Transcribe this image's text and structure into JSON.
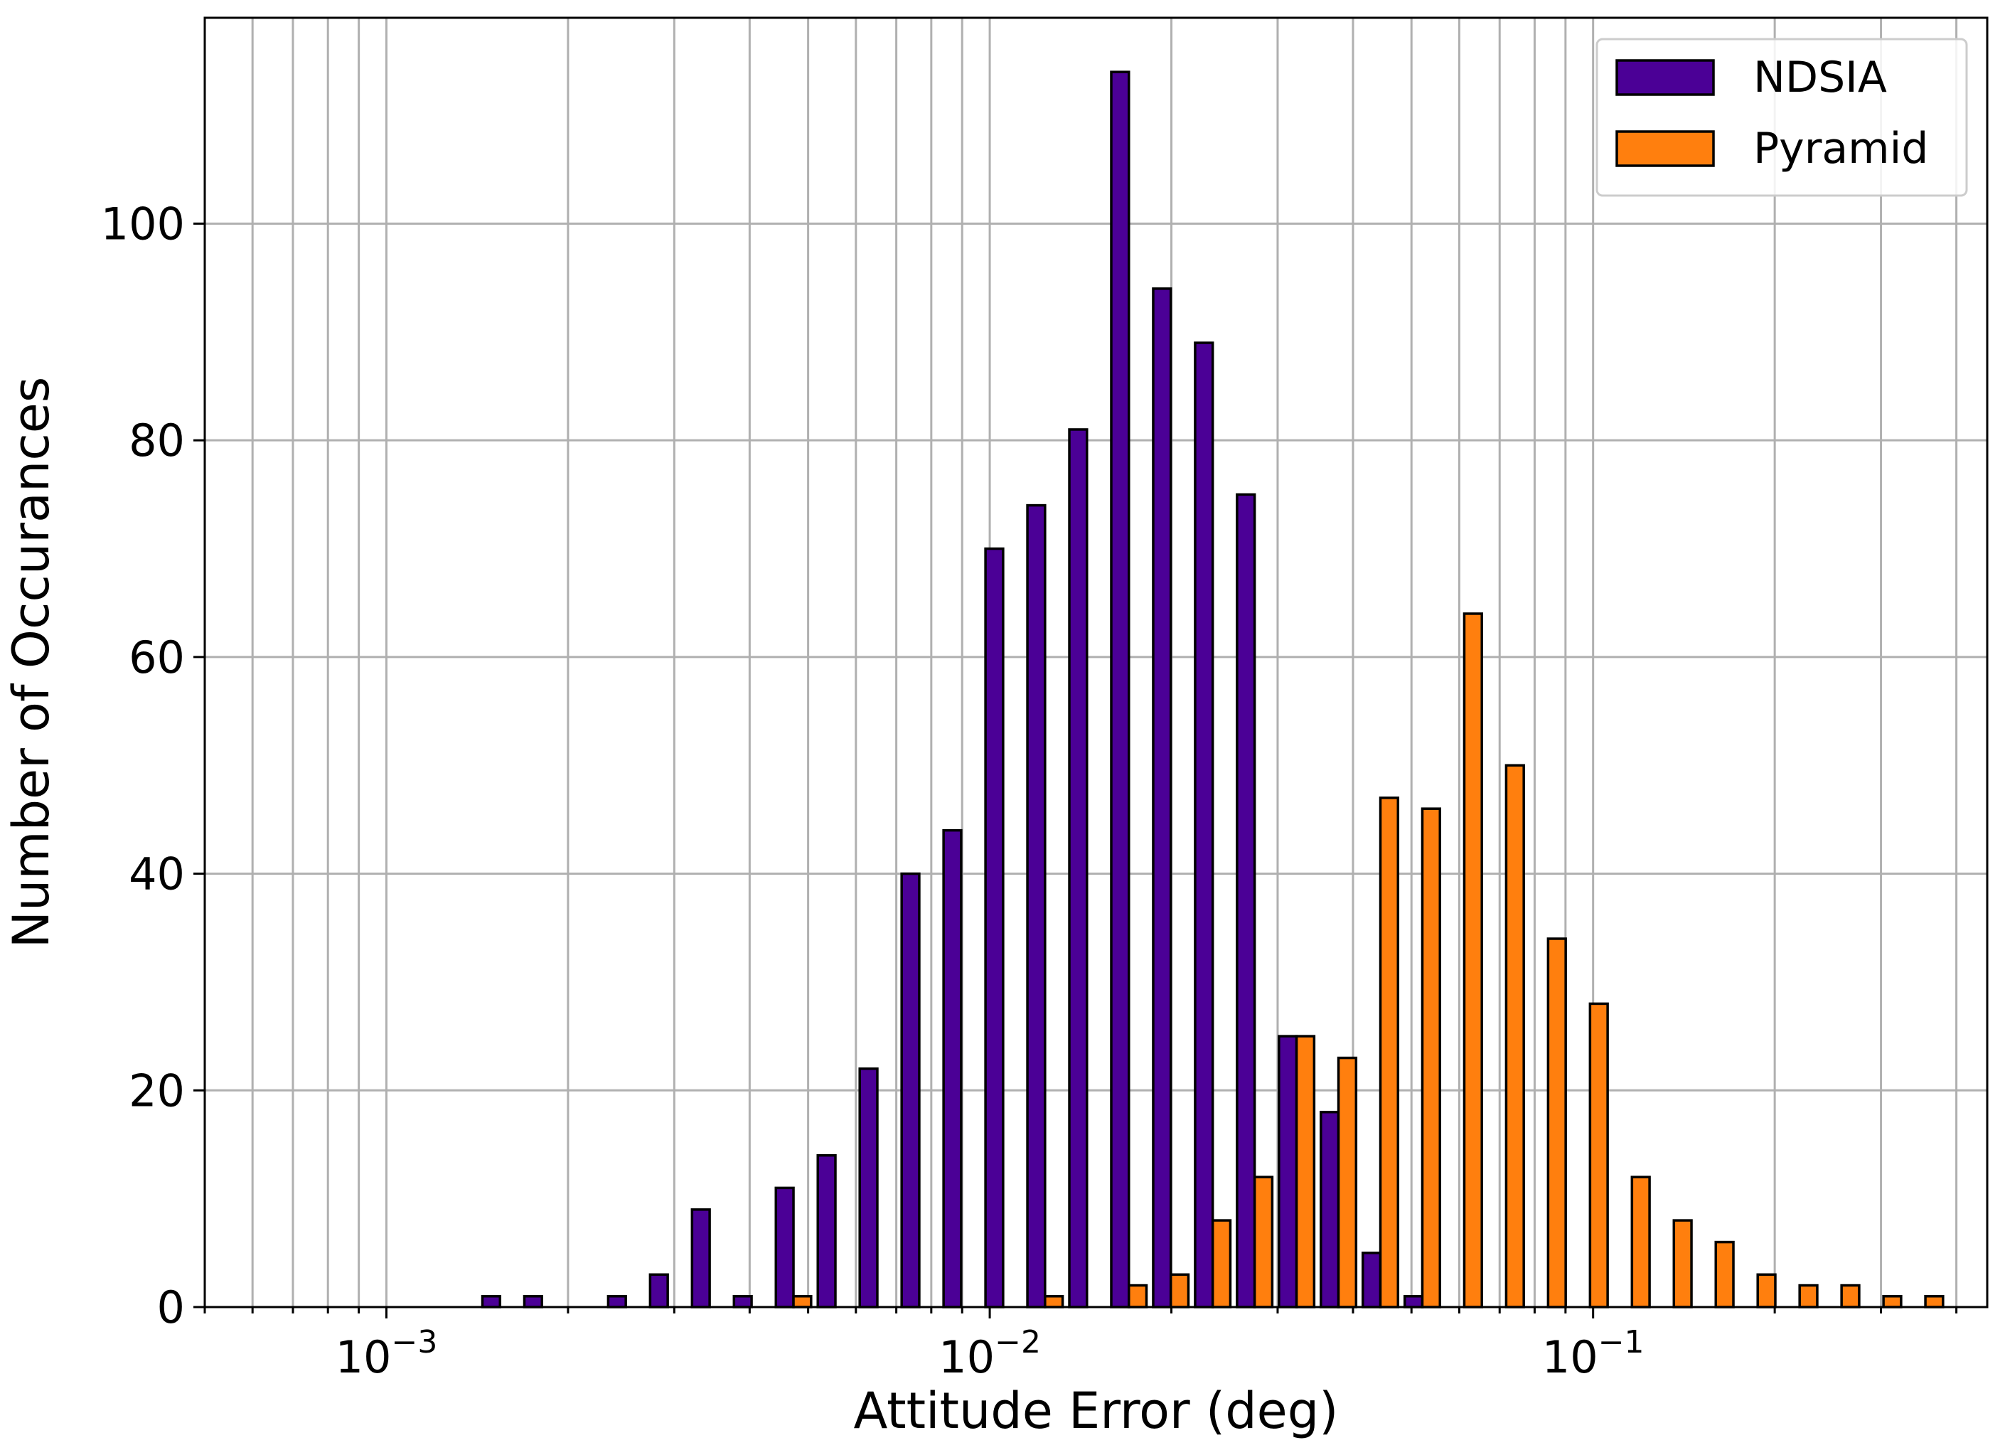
{
  "chart_data": {
    "type": "bar",
    "xlabel": "Attitude Error (deg)",
    "ylabel": "Number of Occurances",
    "x_scale": "log",
    "xlim": [
      0.0005,
      0.45
    ],
    "ylim": [
      0,
      119
    ],
    "grid": true,
    "legend_position": "top-right",
    "x_ticks": [
      {
        "value": 0.001,
        "base": "10",
        "exp": "−3"
      },
      {
        "value": 0.01,
        "base": "10",
        "exp": "−2"
      },
      {
        "value": 0.1,
        "base": "10",
        "exp": "−1"
      }
    ],
    "y_ticks": [
      {
        "value": 0,
        "label": "0"
      },
      {
        "value": 20,
        "label": "20"
      },
      {
        "value": 40,
        "label": "40"
      },
      {
        "value": 60,
        "label": "60"
      },
      {
        "value": 80,
        "label": "80"
      },
      {
        "value": 100,
        "label": "100"
      }
    ],
    "bin_start": 0.00064,
    "bin_ratio": 1.1735,
    "series": [
      {
        "name": "NDSIA",
        "color": "#4b0096",
        "values": [
          0,
          0,
          0,
          0,
          0,
          1,
          1,
          0,
          1,
          3,
          9,
          1,
          11,
          14,
          22,
          40,
          44,
          70,
          74,
          81,
          114,
          94,
          89,
          75,
          25,
          18,
          5,
          1,
          0,
          0,
          0,
          0,
          0,
          0,
          0,
          0,
          0,
          0,
          0,
          0
        ]
      },
      {
        "name": "Pyramid",
        "color": "#ff7f0e",
        "values": [
          0,
          0,
          0,
          0,
          0,
          0,
          0,
          0,
          0,
          0,
          0,
          0,
          1,
          0,
          0,
          0,
          0,
          0,
          1,
          0,
          2,
          3,
          8,
          12,
          25,
          23,
          47,
          46,
          64,
          50,
          34,
          28,
          12,
          8,
          6,
          3,
          2,
          2,
          1,
          1
        ]
      }
    ]
  }
}
